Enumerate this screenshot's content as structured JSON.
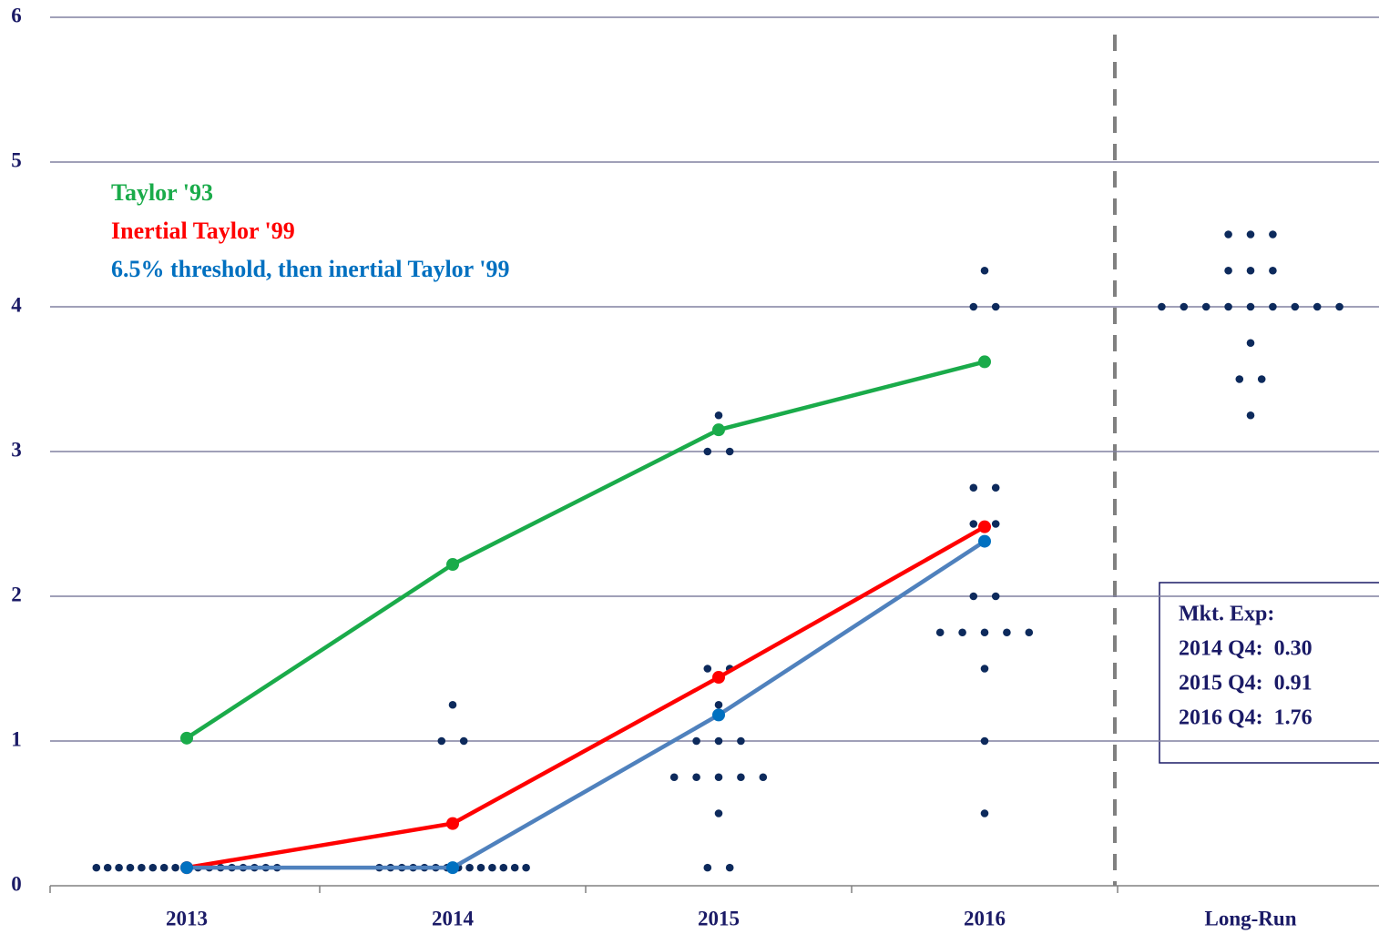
{
  "chart_data": {
    "type": "line",
    "categories": [
      "2013",
      "2014",
      "2015",
      "2016",
      "Long-Run"
    ],
    "ylim": [
      0,
      6
    ],
    "yticks": [
      0,
      1,
      2,
      3,
      4,
      5,
      6
    ],
    "grid": true,
    "series": [
      {
        "name": "Taylor '93",
        "color": "#1aab4a",
        "marker_color": "#1aab4a",
        "values": [
          1.02,
          2.22,
          3.15,
          3.62,
          null
        ]
      },
      {
        "name": "Inertial Taylor '99",
        "color": "#ff0000",
        "marker_color": "#ff0000",
        "values": [
          0.125,
          0.43,
          1.44,
          2.48,
          null
        ]
      },
      {
        "name": "6.5% threshold, then inertial Taylor '99",
        "color": "#4f81bd",
        "marker_color": "#0070c0",
        "values": [
          0.125,
          0.125,
          1.18,
          2.38,
          null
        ]
      }
    ],
    "dot_plot": {
      "color": "#0d2a5c",
      "values": [
        [
          0.125,
          0.125,
          0.125,
          0.125,
          0.125,
          0.125,
          0.125,
          0.125,
          0.125,
          0.125,
          0.125,
          0.125,
          0.125,
          0.125,
          0.125,
          0.125,
          0.125
        ],
        [
          0.125,
          0.125,
          0.125,
          0.125,
          0.125,
          0.125,
          0.125,
          0.125,
          0.125,
          0.125,
          0.125,
          0.125,
          0.125,
          0.125,
          1,
          1,
          1.25
        ],
        [
          0.125,
          0.125,
          0.5,
          0.75,
          0.75,
          0.75,
          0.75,
          0.75,
          1,
          1,
          1,
          1.25,
          1.5,
          1.5,
          3,
          3,
          3.25
        ],
        [
          0.5,
          1,
          1.5,
          1.75,
          1.75,
          1.75,
          1.75,
          1.75,
          2,
          2,
          2.5,
          2.5,
          2.75,
          2.75,
          4,
          4,
          4.25
        ],
        [
          3.25,
          3.5,
          3.5,
          3.75,
          4,
          4,
          4,
          4,
          4,
          4,
          4,
          4,
          4,
          4.25,
          4.25,
          4.25,
          4.5,
          4.5,
          4.5
        ]
      ]
    },
    "box": {
      "lines": [
        "Mkt. Exp:",
        "2014 Q4:  0.30",
        "2015 Q4:  0.91",
        "2016 Q4:  1.76"
      ]
    }
  }
}
